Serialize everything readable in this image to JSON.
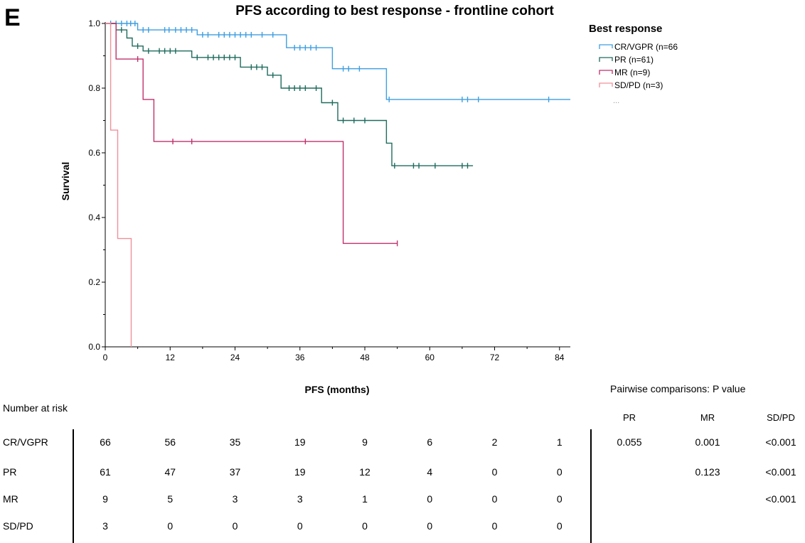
{
  "panel_letter": "E",
  "chart_data": {
    "type": "line",
    "subtype": "kaplan-meier",
    "title": "PFS according to best response - frontline cohort",
    "xlabel": "PFS (months)",
    "ylabel": "Survival",
    "xlim": [
      0,
      86
    ],
    "ylim": [
      0,
      1.0
    ],
    "xticks": [
      0,
      12,
      24,
      36,
      48,
      60,
      72,
      84
    ],
    "xtick_labels": [
      "0",
      "12",
      "24",
      "36",
      "48",
      "60",
      "72",
      "84"
    ],
    "yticks": [
      0,
      0.2,
      0.4,
      0.6,
      0.8,
      1.0
    ],
    "ytick_labels": [
      "0.0",
      "0.2",
      "0.4",
      "0.6",
      "0.8",
      "1.0"
    ],
    "grid": false,
    "legend_title": "Best response",
    "legend_placement": "top-right outside",
    "legend_more": "...",
    "series": [
      {
        "name": "CR/VGPR (n=66",
        "color": "#3d9ee0",
        "steps": [
          [
            0,
            1.0
          ],
          [
            6,
            1.0
          ],
          [
            6,
            0.98
          ],
          [
            17,
            0.98
          ],
          [
            17,
            0.965
          ],
          [
            33.5,
            0.965
          ],
          [
            33.5,
            0.925
          ],
          [
            42,
            0.925
          ],
          [
            42,
            0.86
          ],
          [
            52,
            0.86
          ],
          [
            52,
            0.765
          ],
          [
            86,
            0.765
          ]
        ],
        "censors": [
          [
            1,
            1.0
          ],
          [
            2,
            1.0
          ],
          [
            3,
            1.0
          ],
          [
            4,
            1.0
          ],
          [
            4.7,
            1.0
          ],
          [
            5.5,
            1.0
          ],
          [
            7,
            0.98
          ],
          [
            8,
            0.98
          ],
          [
            11,
            0.98
          ],
          [
            11.8,
            0.98
          ],
          [
            13,
            0.98
          ],
          [
            14,
            0.98
          ],
          [
            15,
            0.98
          ],
          [
            16,
            0.98
          ],
          [
            18,
            0.965
          ],
          [
            19,
            0.965
          ],
          [
            21,
            0.965
          ],
          [
            22,
            0.965
          ],
          [
            23,
            0.965
          ],
          [
            24,
            0.965
          ],
          [
            25,
            0.965
          ],
          [
            26,
            0.965
          ],
          [
            27,
            0.965
          ],
          [
            29,
            0.965
          ],
          [
            31,
            0.965
          ],
          [
            35,
            0.925
          ],
          [
            36,
            0.925
          ],
          [
            37,
            0.925
          ],
          [
            38,
            0.925
          ],
          [
            39,
            0.925
          ],
          [
            44,
            0.86
          ],
          [
            45,
            0.86
          ],
          [
            47,
            0.86
          ],
          [
            52.5,
            0.765
          ],
          [
            66,
            0.765
          ],
          [
            67,
            0.765
          ],
          [
            69,
            0.765
          ],
          [
            82,
            0.765
          ]
        ]
      },
      {
        "name": "PR (n=61)",
        "color": "#1e6b5c",
        "steps": [
          [
            0,
            1.0
          ],
          [
            2,
            1.0
          ],
          [
            2,
            0.98
          ],
          [
            4,
            0.98
          ],
          [
            4,
            0.955
          ],
          [
            5,
            0.955
          ],
          [
            5,
            0.93
          ],
          [
            7,
            0.93
          ],
          [
            7,
            0.915
          ],
          [
            16,
            0.915
          ],
          [
            16,
            0.895
          ],
          [
            25,
            0.895
          ],
          [
            25,
            0.865
          ],
          [
            30,
            0.865
          ],
          [
            30,
            0.84
          ],
          [
            32.5,
            0.84
          ],
          [
            32.5,
            0.8
          ],
          [
            40,
            0.8
          ],
          [
            40,
            0.755
          ],
          [
            43,
            0.755
          ],
          [
            43,
            0.7
          ],
          [
            52,
            0.7
          ],
          [
            52,
            0.63
          ],
          [
            53,
            0.63
          ],
          [
            53,
            0.56
          ],
          [
            68,
            0.56
          ]
        ],
        "censors": [
          [
            3,
            0.98
          ],
          [
            6,
            0.93
          ],
          [
            8,
            0.915
          ],
          [
            10,
            0.915
          ],
          [
            11,
            0.915
          ],
          [
            12,
            0.915
          ],
          [
            13,
            0.915
          ],
          [
            17,
            0.895
          ],
          [
            19,
            0.895
          ],
          [
            20,
            0.895
          ],
          [
            21,
            0.895
          ],
          [
            22,
            0.895
          ],
          [
            23,
            0.895
          ],
          [
            24,
            0.895
          ],
          [
            27,
            0.865
          ],
          [
            28,
            0.865
          ],
          [
            29,
            0.865
          ],
          [
            31,
            0.84
          ],
          [
            34,
            0.8
          ],
          [
            35,
            0.8
          ],
          [
            36,
            0.8
          ],
          [
            37,
            0.8
          ],
          [
            39,
            0.8
          ],
          [
            42,
            0.755
          ],
          [
            44,
            0.7
          ],
          [
            46,
            0.7
          ],
          [
            48,
            0.7
          ],
          [
            53.5,
            0.56
          ],
          [
            57,
            0.56
          ],
          [
            58,
            0.56
          ],
          [
            61,
            0.56
          ],
          [
            66,
            0.56
          ],
          [
            67,
            0.56
          ]
        ]
      },
      {
        "name": "MR (n=9)",
        "color": "#c0306a",
        "steps": [
          [
            0,
            1.0
          ],
          [
            2,
            1.0
          ],
          [
            2,
            0.89
          ],
          [
            7,
            0.89
          ],
          [
            7,
            0.765
          ],
          [
            9,
            0.765
          ],
          [
            9,
            0.635
          ],
          [
            44,
            0.635
          ],
          [
            44,
            0.32
          ],
          [
            54,
            0.32
          ]
        ],
        "censors": [
          [
            6,
            0.89
          ],
          [
            12.5,
            0.635
          ],
          [
            16,
            0.635
          ],
          [
            37,
            0.635
          ],
          [
            54,
            0.32
          ]
        ]
      },
      {
        "name": "SD/PD (n=3)",
        "color": "#f0909a",
        "steps": [
          [
            0,
            1.0
          ],
          [
            1,
            1.0
          ],
          [
            1,
            0.67
          ],
          [
            2.3,
            0.67
          ],
          [
            2.3,
            0.335
          ],
          [
            4.8,
            0.335
          ],
          [
            4.8,
            0.0
          ]
        ],
        "censors": []
      }
    ]
  },
  "risk_table": {
    "title": "Number at risk",
    "times": [
      "0",
      "12",
      "24",
      "36",
      "48",
      "60",
      "72",
      "84"
    ],
    "rows": [
      {
        "label": "CR/VGPR",
        "values": [
          "66",
          "56",
          "35",
          "19",
          "9",
          "6",
          "2",
          "1"
        ]
      },
      {
        "label": "PR",
        "values": [
          "61",
          "47",
          "37",
          "19",
          "12",
          "4",
          "0",
          "0"
        ]
      },
      {
        "label": "MR",
        "values": [
          "9",
          "5",
          "3",
          "3",
          "1",
          "0",
          "0",
          "0"
        ]
      },
      {
        "label": "SD/PD",
        "values": [
          "3",
          "0",
          "0",
          "0",
          "0",
          "0",
          "0",
          "0"
        ]
      }
    ]
  },
  "pairwise": {
    "title": "Pairwise comparisons: P value",
    "columns": [
      "PR",
      "MR",
      "SD/PD"
    ],
    "rows": [
      [
        "0.055",
        "0.001",
        "<0.001"
      ],
      [
        "",
        "0.123",
        "<0.001"
      ],
      [
        "",
        "",
        "<0.001"
      ]
    ]
  }
}
